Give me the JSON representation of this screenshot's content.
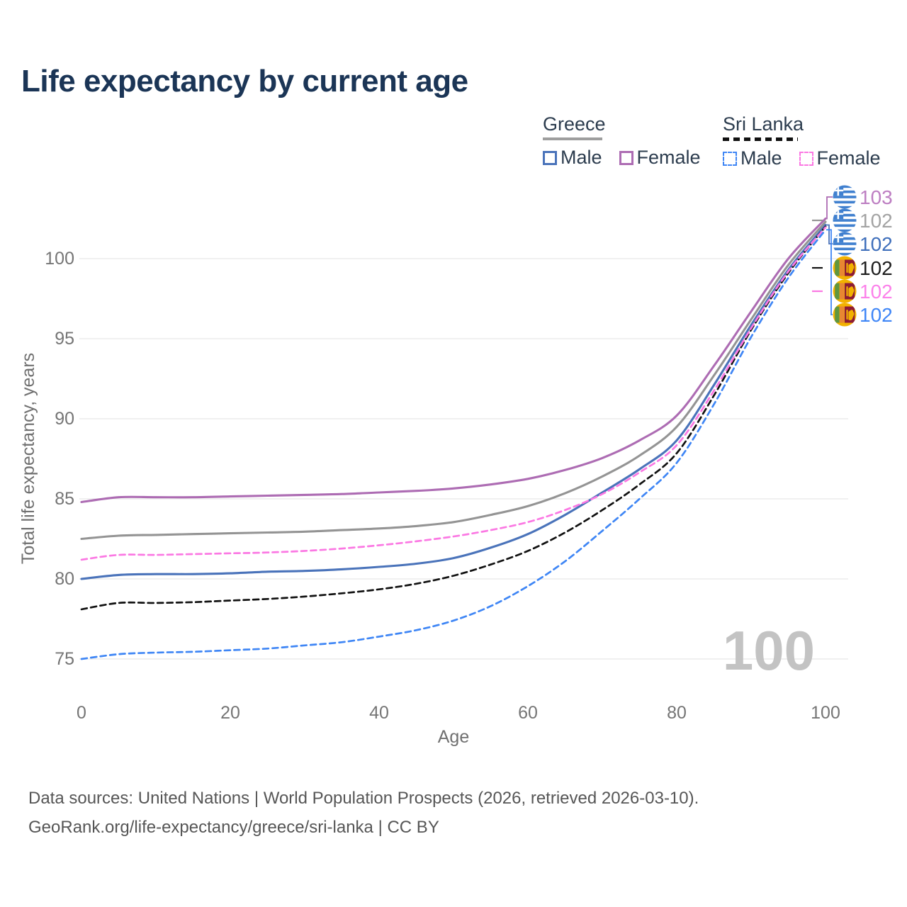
{
  "page": {
    "title": "Life expectancy by current age"
  },
  "legend": {
    "groups": [
      {
        "label": "Greece",
        "line": {
          "color": "#9e9e9e",
          "dashed": false
        },
        "items": [
          {
            "label": "Male",
            "color": "#4a73ba",
            "dashed": false
          },
          {
            "label": "Female",
            "color": "#ad6cb3",
            "dashed": false
          }
        ]
      },
      {
        "label": "Sri Lanka",
        "line": {
          "color": "#111111",
          "dashed": true
        },
        "items": [
          {
            "label": "Male",
            "color": "#3f86f5",
            "dashed": true
          },
          {
            "label": "Female",
            "color": "#fb78e3",
            "dashed": true
          }
        ]
      }
    ]
  },
  "footer": {
    "line1": "Data sources: United Nations | World Population Prospects (2026, retrieved 2026-03-10).",
    "line2": "GeoRank.org/life-expectancy/greece/sri-lanka | CC BY"
  },
  "chart_data": {
    "type": "line",
    "title": "Life expectancy by current age",
    "xlabel": "Age",
    "ylabel": "Total life expectancy, years",
    "x_ticks": [
      0,
      20,
      40,
      60,
      80,
      100
    ],
    "y_ticks": [
      75,
      80,
      85,
      90,
      95,
      100
    ],
    "xlim": [
      0,
      100
    ],
    "ylim": [
      73,
      103
    ],
    "grid": "horizontal",
    "legend_position": "top-right",
    "watermark": "100",
    "x": [
      0,
      5,
      10,
      15,
      20,
      25,
      30,
      35,
      40,
      45,
      50,
      55,
      60,
      65,
      70,
      75,
      80,
      85,
      90,
      95,
      100
    ],
    "series": [
      {
        "name": "Greece Female",
        "country": "Greece",
        "sex": "Female",
        "color": "#ad6cb3",
        "label_color": "#bd7ec2",
        "dashed": false,
        "end_label": "103",
        "flag": "greece",
        "values": [
          84.8,
          85.1,
          85.1,
          85.1,
          85.15,
          85.2,
          85.25,
          85.3,
          85.4,
          85.5,
          85.65,
          85.9,
          86.25,
          86.8,
          87.55,
          88.65,
          90.2,
          93.3,
          96.7,
          100.0,
          102.5
        ]
      },
      {
        "name": "Greece Both sexes",
        "country": "Greece",
        "sex": "Both",
        "color": "#949494",
        "label_color": "#a3a3a3",
        "dashed": false,
        "end_label": "102",
        "flag": "greece",
        "values": [
          82.5,
          82.7,
          82.75,
          82.8,
          82.85,
          82.9,
          82.95,
          83.05,
          83.15,
          83.3,
          83.55,
          84.0,
          84.55,
          85.35,
          86.4,
          87.7,
          89.5,
          92.7,
          96.2,
          99.6,
          102.3
        ]
      },
      {
        "name": "Greece Male",
        "country": "Greece",
        "sex": "Male",
        "color": "#4a73ba",
        "label_color": "#3f6fbb",
        "dashed": false,
        "end_label": "102",
        "flag": "greece",
        "values": [
          80.0,
          80.25,
          80.3,
          80.3,
          80.35,
          80.45,
          80.5,
          80.6,
          80.75,
          80.95,
          81.3,
          81.95,
          82.8,
          84.0,
          85.4,
          86.85,
          88.65,
          92.1,
          95.85,
          99.3,
          102.1
        ]
      },
      {
        "name": "Sri Lanka Both sexes",
        "country": "Sri Lanka",
        "sex": "Both",
        "color": "#111111",
        "label_color": "#1c1c1c",
        "dashed": true,
        "end_label": "102",
        "flag": "srilanka",
        "values": [
          78.1,
          78.5,
          78.5,
          78.55,
          78.65,
          78.75,
          78.9,
          79.1,
          79.35,
          79.7,
          80.2,
          80.9,
          81.75,
          82.9,
          84.3,
          85.9,
          87.85,
          91.45,
          95.55,
          99.1,
          102.0
        ]
      },
      {
        "name": "Sri Lanka Female",
        "country": "Sri Lanka",
        "sex": "Female",
        "color": "#fb78e3",
        "label_color": "#fc81ea",
        "dashed": true,
        "end_label": "102",
        "flag": "srilanka",
        "values": [
          81.2,
          81.5,
          81.5,
          81.55,
          81.6,
          81.65,
          81.75,
          81.9,
          82.1,
          82.35,
          82.65,
          83.05,
          83.55,
          84.3,
          85.3,
          86.65,
          88.35,
          91.75,
          95.65,
          99.2,
          101.95
        ]
      },
      {
        "name": "Sri Lanka Male",
        "country": "Sri Lanka",
        "sex": "Male",
        "color": "#3f86f5",
        "label_color": "#3f86f7",
        "dashed": true,
        "end_label": "102",
        "flag": "srilanka",
        "values": [
          75.0,
          75.3,
          75.4,
          75.45,
          75.55,
          75.65,
          75.85,
          76.05,
          76.4,
          76.8,
          77.4,
          78.3,
          79.55,
          81.1,
          83.0,
          85.0,
          87.25,
          90.9,
          95.1,
          98.8,
          101.8
        ]
      }
    ]
  }
}
